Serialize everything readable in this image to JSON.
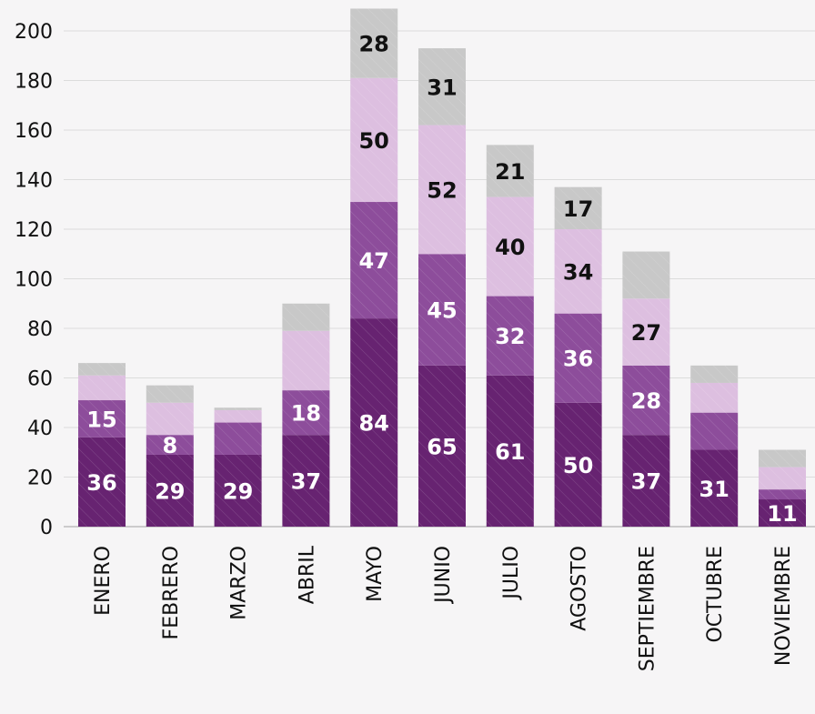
{
  "chart_data": {
    "type": "bar",
    "stacked": true,
    "categories": [
      "ENERO",
      "FEBRERO",
      "MARZO",
      "ABRIL",
      "MAYO",
      "JUNIO",
      "JULIO",
      "AGOSTO",
      "SEPTIEMBRE",
      "OCTUBRE",
      "NOVIEMBRE"
    ],
    "series": [
      {
        "color": "#672371",
        "label_color": "#ffffff",
        "values": [
          36,
          29,
          29,
          37,
          84,
          65,
          61,
          50,
          37,
          31,
          11
        ],
        "labels": [
          "36",
          "29",
          "29",
          "37",
          "84",
          "65",
          "61",
          "50",
          "37",
          "31",
          "11"
        ]
      },
      {
        "color": "#8d4d9b",
        "label_color": "#ffffff",
        "values": [
          15,
          8,
          13,
          18,
          47,
          45,
          32,
          36,
          28,
          15,
          4
        ],
        "labels": [
          "15",
          "8",
          "",
          "18",
          "47",
          "45",
          "32",
          "36",
          "28",
          "",
          ""
        ]
      },
      {
        "color": "#ddbfe0",
        "label_color": "#111111",
        "values": [
          10,
          13,
          5,
          24,
          50,
          52,
          40,
          34,
          27,
          12,
          9
        ],
        "labels": [
          "",
          "",
          "",
          "",
          "50",
          "52",
          "40",
          "34",
          "27",
          "",
          ""
        ]
      },
      {
        "color": "#c8c8c8",
        "label_color": "#111111",
        "values": [
          5,
          7,
          1,
          11,
          28,
          31,
          21,
          17,
          19,
          7,
          7
        ],
        "labels": [
          "",
          "",
          "",
          "",
          "28",
          "31",
          "21",
          "17",
          "",
          "",
          ""
        ]
      }
    ],
    "ylim": [
      0,
      210
    ],
    "yticks": [
      0,
      20,
      40,
      60,
      80,
      100,
      120,
      140,
      160,
      180,
      200
    ],
    "grid": true,
    "hatched_bars": true,
    "legend": "none"
  }
}
